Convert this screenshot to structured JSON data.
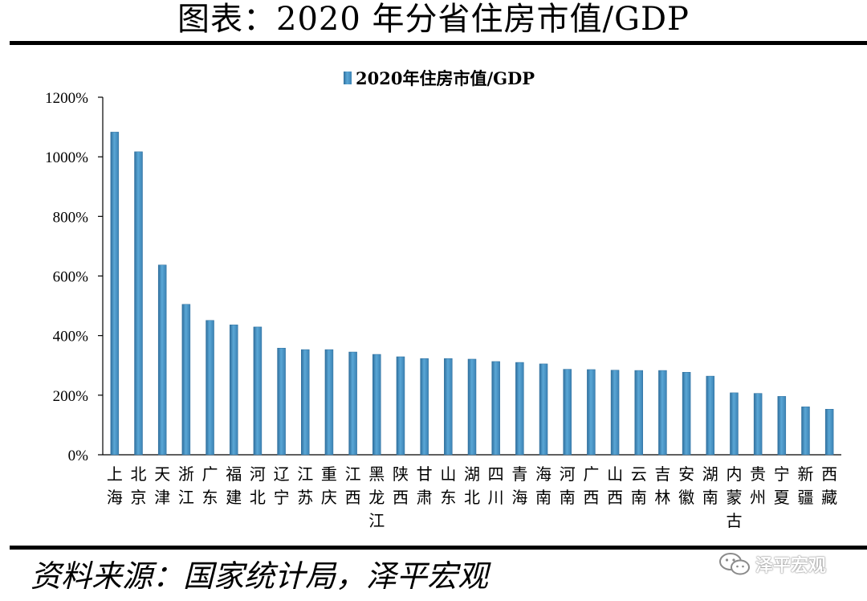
{
  "header": {
    "title": "图表：2020 年分省住房市值/GDP"
  },
  "footer": {
    "source": "资料来源：国家统计局，泽平宏观",
    "watermark": "泽平宏观"
  },
  "chart_data": {
    "type": "bar",
    "legend": "2020年住房市值/GDP",
    "legend_position": "top-center",
    "y_ticks": [
      "0%",
      "200%",
      "400%",
      "600%",
      "800%",
      "1000%",
      "1200%"
    ],
    "ylim": [
      0,
      1200
    ],
    "grid": false,
    "bar_color": "#4a95c6",
    "categories": [
      [
        "上",
        "海"
      ],
      [
        "北",
        "京"
      ],
      [
        "天",
        "津"
      ],
      [
        "浙",
        "江"
      ],
      [
        "广",
        "东"
      ],
      [
        "福",
        "建"
      ],
      [
        "河",
        "北"
      ],
      [
        "辽",
        "宁"
      ],
      [
        "江",
        "苏"
      ],
      [
        "重",
        "庆"
      ],
      [
        "江",
        "西"
      ],
      [
        "黑",
        "龙",
        "江"
      ],
      [
        "陕",
        "西"
      ],
      [
        "甘",
        "肃"
      ],
      [
        "山",
        "东"
      ],
      [
        "湖",
        "北"
      ],
      [
        "四",
        "川"
      ],
      [
        "青",
        "海"
      ],
      [
        "海",
        "南"
      ],
      [
        "河",
        "南"
      ],
      [
        "广",
        "西"
      ],
      [
        "山",
        "西"
      ],
      [
        "云",
        "南"
      ],
      [
        "吉",
        "林"
      ],
      [
        "安",
        "徽"
      ],
      [
        "湖",
        "南"
      ],
      [
        "内",
        "蒙",
        "古"
      ],
      [
        "贵",
        "州"
      ],
      [
        "宁",
        "夏"
      ],
      [
        "新",
        "疆"
      ],
      [
        "西",
        "藏"
      ]
    ],
    "values": [
      1083,
      1017,
      637,
      505,
      451,
      436,
      429,
      358,
      353,
      353,
      345,
      337,
      329,
      323,
      323,
      321,
      313,
      310,
      305,
      287,
      286,
      284,
      283,
      283,
      277,
      264,
      208,
      206,
      196,
      161,
      153
    ]
  }
}
